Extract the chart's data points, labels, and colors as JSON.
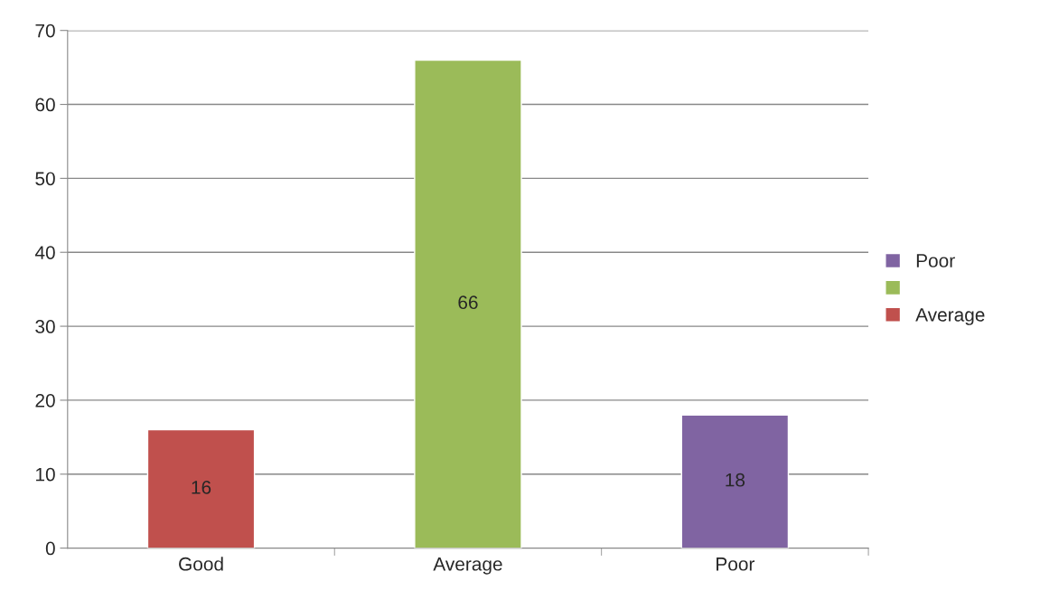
{
  "chart_data": {
    "type": "bar",
    "categories": [
      "Good",
      "Average",
      "Poor"
    ],
    "series": [
      {
        "name": "Poor",
        "color": "#8064a2",
        "values": [
          null,
          null,
          18
        ]
      },
      {
        "color": "#9bbb59",
        "values": [
          null,
          66,
          null
        ]
      },
      {
        "name": "Average",
        "color": "#c0504d",
        "values": [
          16,
          null,
          null
        ]
      }
    ],
    "ylim": [
      0,
      70
    ],
    "yticks": [
      0,
      10,
      20,
      30,
      40,
      50,
      60,
      70
    ],
    "grid": "y",
    "legend": "right",
    "data_labels": true
  }
}
